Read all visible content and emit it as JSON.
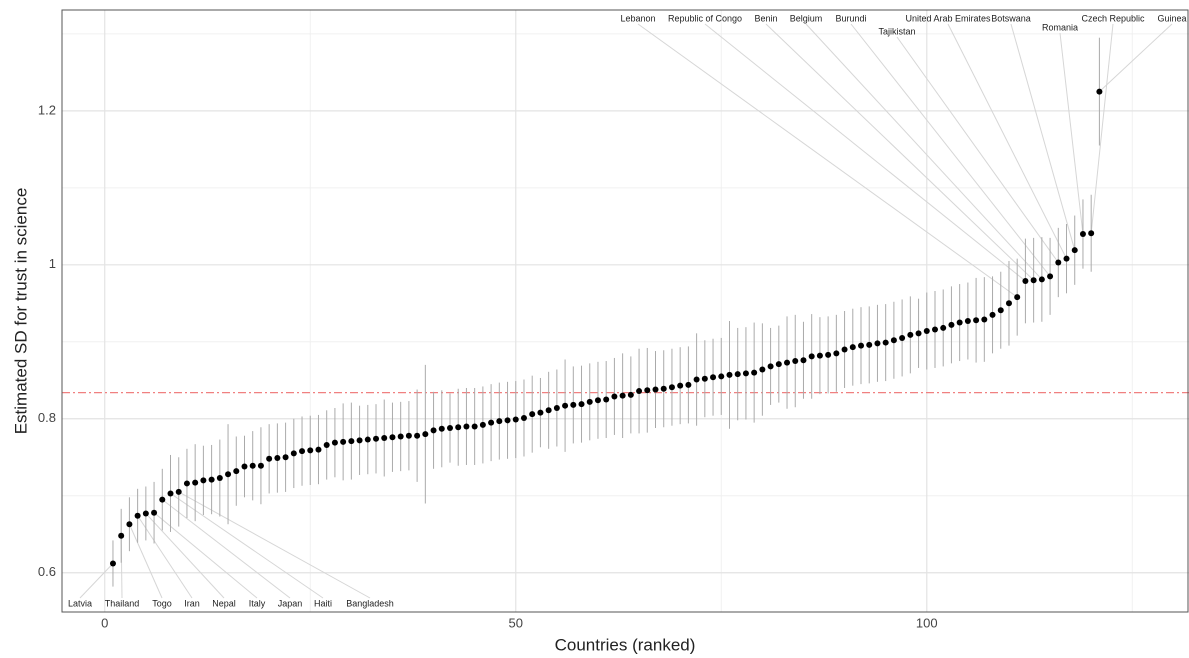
{
  "chart_data": {
    "type": "scatter",
    "xlabel": "Countries (ranked)",
    "ylabel": "Estimated SD for trust in science",
    "xlim": [
      -5.2,
      131.9
    ],
    "xticks": [
      0,
      50,
      100
    ],
    "ylim": [
      0.549,
      1.331
    ],
    "yticks": [
      0.6,
      0.8,
      1.0,
      1.2
    ],
    "grid": true,
    "color": "#000000",
    "error_color": "#aaaaaa",
    "reference_line": {
      "value": 0.834,
      "color": "#f08080"
    },
    "x": [
      1,
      2,
      3,
      4,
      5,
      6,
      7,
      8,
      9,
      10,
      11,
      12,
      13,
      14,
      15,
      16,
      17,
      18,
      19,
      20,
      21,
      22,
      23,
      24,
      25,
      26,
      27,
      28,
      29,
      30,
      31,
      32,
      33,
      34,
      35,
      36,
      37,
      38,
      39,
      40,
      41,
      42,
      43,
      44,
      45,
      46,
      47,
      48,
      49,
      50,
      51,
      52,
      53,
      54,
      55,
      56,
      57,
      58,
      59,
      60,
      61,
      62,
      63,
      64,
      65,
      66,
      67,
      68,
      69,
      70,
      71,
      72,
      73,
      74,
      75,
      76,
      77,
      78,
      79,
      80,
      81,
      82,
      83,
      84,
      85,
      86,
      87,
      88,
      89,
      90,
      91,
      92,
      93,
      94,
      95,
      96,
      97,
      98,
      99,
      100,
      101,
      102,
      103,
      104,
      105,
      106,
      107,
      108,
      109,
      110,
      111,
      112,
      113,
      114,
      115,
      116,
      117,
      118,
      119,
      120,
      121
    ],
    "values": [
      0.612,
      0.648,
      0.663,
      0.674,
      0.677,
      0.678,
      0.695,
      0.703,
      0.705,
      0.716,
      0.717,
      0.72,
      0.721,
      0.723,
      0.728,
      0.732,
      0.738,
      0.739,
      0.739,
      0.748,
      0.749,
      0.75,
      0.755,
      0.758,
      0.759,
      0.76,
      0.766,
      0.769,
      0.77,
      0.771,
      0.772,
      0.773,
      0.774,
      0.775,
      0.776,
      0.777,
      0.778,
      0.778,
      0.78,
      0.785,
      0.787,
      0.788,
      0.789,
      0.79,
      0.79,
      0.792,
      0.795,
      0.797,
      0.798,
      0.799,
      0.801,
      0.806,
      0.808,
      0.811,
      0.814,
      0.817,
      0.818,
      0.819,
      0.822,
      0.824,
      0.825,
      0.829,
      0.83,
      0.831,
      0.836,
      0.837,
      0.838,
      0.839,
      0.841,
      0.843,
      0.844,
      0.851,
      0.852,
      0.854,
      0.855,
      0.857,
      0.858,
      0.859,
      0.86,
      0.864,
      0.868,
      0.871,
      0.873,
      0.875,
      0.876,
      0.881,
      0.882,
      0.883,
      0.885,
      0.89,
      0.893,
      0.895,
      0.896,
      0.898,
      0.899,
      0.902,
      0.905,
      0.909,
      0.911,
      0.914,
      0.916,
      0.918,
      0.922,
      0.925,
      0.927,
      0.928,
      0.929,
      0.935,
      0.941,
      0.95,
      0.958,
      0.979,
      0.98,
      0.981,
      0.985,
      1.003,
      1.008,
      1.019,
      1.04,
      1.041,
      1.225
    ],
    "errors": [
      0.03,
      0.035,
      0.035,
      0.035,
      0.035,
      0.04,
      0.04,
      0.05,
      0.045,
      0.045,
      0.05,
      0.045,
      0.045,
      0.05,
      0.065,
      0.045,
      0.04,
      0.045,
      0.05,
      0.045,
      0.045,
      0.045,
      0.045,
      0.045,
      0.045,
      0.045,
      0.045,
      0.045,
      0.05,
      0.05,
      0.045,
      0.045,
      0.045,
      0.05,
      0.045,
      0.045,
      0.045,
      0.06,
      0.09,
      0.05,
      0.05,
      0.045,
      0.05,
      0.05,
      0.05,
      0.05,
      0.05,
      0.05,
      0.05,
      0.05,
      0.05,
      0.05,
      0.045,
      0.05,
      0.05,
      0.06,
      0.05,
      0.05,
      0.05,
      0.05,
      0.05,
      0.05,
      0.055,
      0.05,
      0.055,
      0.055,
      0.05,
      0.05,
      0.05,
      0.05,
      0.05,
      0.06,
      0.05,
      0.05,
      0.05,
      0.07,
      0.06,
      0.06,
      0.065,
      0.06,
      0.05,
      0.05,
      0.06,
      0.06,
      0.05,
      0.055,
      0.05,
      0.05,
      0.05,
      0.05,
      0.05,
      0.05,
      0.05,
      0.05,
      0.05,
      0.05,
      0.05,
      0.05,
      0.045,
      0.05,
      0.05,
      0.05,
      0.05,
      0.05,
      0.05,
      0.055,
      0.055,
      0.05,
      0.05,
      0.055,
      0.05,
      0.055,
      0.055,
      0.055,
      0.05,
      0.045,
      0.045,
      0.045,
      0.045,
      0.05,
      0.07
    ],
    "labels": [
      "Latvia",
      "Thailand",
      "Togo",
      "Iran",
      "Nepal",
      "Italy",
      "Japan",
      "Haiti",
      "Bangladesh",
      null,
      null,
      null,
      null,
      null,
      null,
      null,
      null,
      null,
      null,
      null,
      null,
      null,
      null,
      null,
      null,
      null,
      null,
      null,
      null,
      null,
      null,
      null,
      null,
      null,
      null,
      null,
      null,
      null,
      null,
      null,
      null,
      null,
      null,
      null,
      null,
      null,
      null,
      null,
      null,
      null,
      null,
      null,
      null,
      null,
      null,
      null,
      null,
      null,
      null,
      null,
      null,
      null,
      null,
      null,
      null,
      null,
      null,
      null,
      null,
      null,
      null,
      null,
      null,
      null,
      null,
      null,
      null,
      null,
      null,
      null,
      null,
      null,
      null,
      null,
      null,
      null,
      null,
      null,
      null,
      null,
      null,
      null,
      null,
      null,
      null,
      null,
      null,
      null,
      null,
      null,
      null,
      null,
      null,
      null,
      null,
      null,
      null,
      null,
      null,
      null,
      "Lebanon",
      "Republic of Congo",
      "Benin",
      "Belgium",
      "Burundi",
      "Tajikistan",
      "United Arab Emirates",
      "Botswana",
      "Romania",
      "Czech Republic",
      "Guinea"
    ]
  }
}
